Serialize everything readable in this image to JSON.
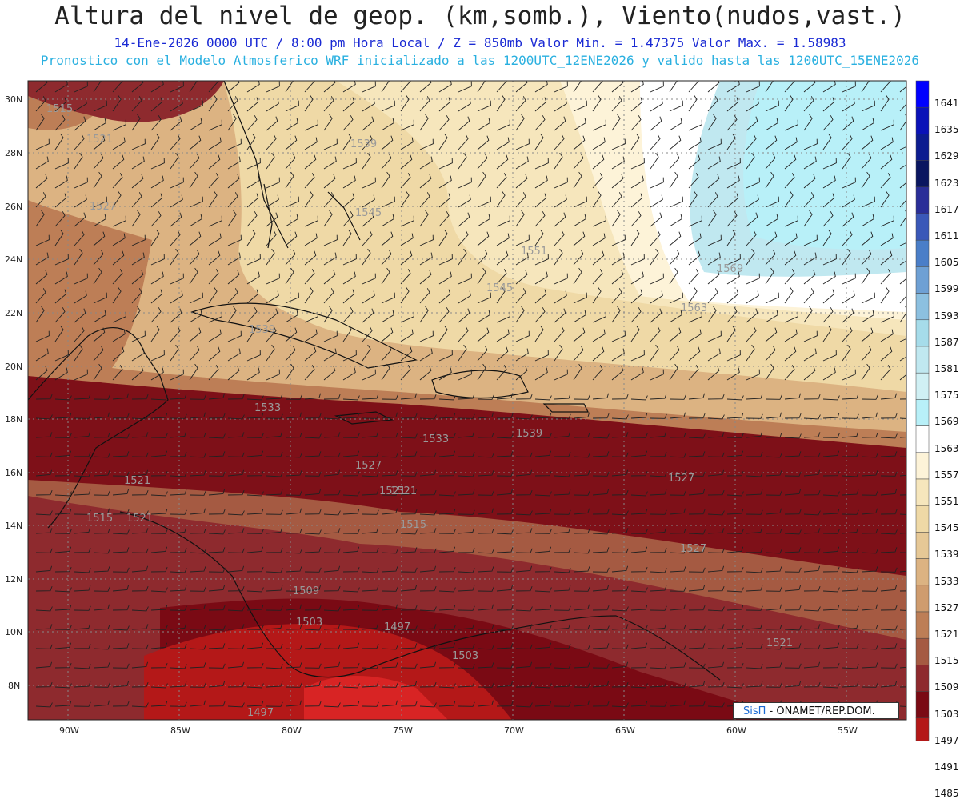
{
  "header": {
    "title": "Altura del nivel de geop. (km,somb.), Viento(nudos,vast.)",
    "line1": "14-Ene-2026  0000 UTC / 8:00 pm Hora Local / Z = 850mb     Valor Min. = 1.47375  Valor Max. = 1.58983",
    "line2": "Pronostico con el Modelo Atmosferico WRF inicializado a las 1200UTC_12ENE2026 y valido hasta las  1200UTC_15ENE2026"
  },
  "axes": {
    "lat_labels": [
      "30N",
      "28N",
      "26N",
      "24N",
      "22N",
      "20N",
      "18N",
      "16N",
      "14N",
      "12N",
      "10N",
      "8N"
    ],
    "lon_labels": [
      "90W",
      "85W",
      "80W",
      "75W",
      "70W",
      "65W",
      "60W",
      "55W"
    ]
  },
  "contour_labels": [
    "1515",
    "1521",
    "1527",
    "1539",
    "1545",
    "1551",
    "1569",
    "1563",
    "1539",
    "1533",
    "1533",
    "1539",
    "1527",
    "1521",
    "1527",
    "1521",
    "1515",
    "1521",
    "1515",
    "1509",
    "1503",
    "1497",
    "1503",
    "1521",
    "1497",
    "1545",
    "1521",
    "1527"
  ],
  "colorbar": {
    "labels": [
      "1641",
      "1635",
      "1629",
      "1623",
      "1617",
      "1611",
      "1605",
      "1599",
      "1593",
      "1587",
      "1581",
      "1575",
      "1569",
      "1563",
      "1557",
      "1551",
      "1545",
      "1539",
      "1533",
      "1527",
      "1521",
      "1515",
      "1509",
      "1503",
      "1497",
      "1491",
      "1485"
    ],
    "colors": [
      "#0000ff",
      "#0a12b8",
      "#0c1c90",
      "#0a1660",
      "#2a2e98",
      "#3a58b8",
      "#4a7ec8",
      "#6ea0d4",
      "#8cc0e0",
      "#a6dcea",
      "#c0e8f0",
      "#d0f0f4",
      "#b8f0f8",
      "#ffffff",
      "#fdf3d8",
      "#f6e6bc",
      "#efd9a6",
      "#e6c896",
      "#dcb382",
      "#cf9c6e",
      "#bd7e56",
      "#a55a42",
      "#8e2a2e",
      "#7a0a14",
      "#b41818",
      "#d82424",
      "#ff0000"
    ]
  },
  "credit": {
    "brand": "SisΠ",
    "text": " - ONAMET/REP.DOM."
  }
}
